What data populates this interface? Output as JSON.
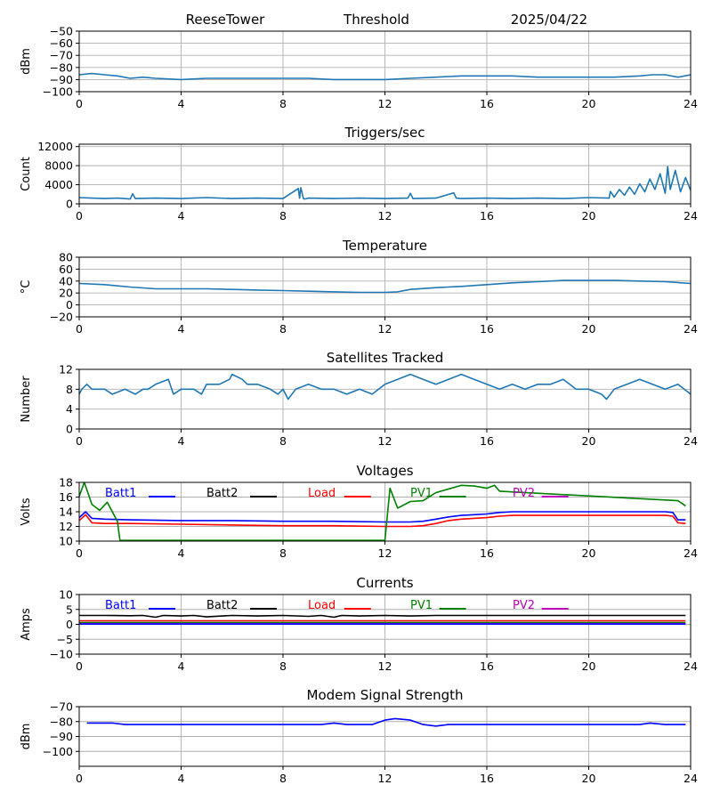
{
  "header": {
    "station": "ReeseTower",
    "mode": "Threshold",
    "date": "2025/04/22"
  },
  "chart_data": [
    {
      "type": "line",
      "title": "",
      "ylabel": "dBm",
      "xlim": [
        0,
        24
      ],
      "xticks": [
        0,
        4,
        8,
        12,
        16,
        20,
        24
      ],
      "ylim": [
        -100,
        -50
      ],
      "yticks": [
        -100,
        -90,
        -80,
        -70,
        -60,
        -50
      ],
      "grid": true,
      "series": [
        {
          "color": "#1f77b4",
          "x": [
            0,
            0.5,
            1,
            1.5,
            2,
            2.5,
            3,
            4,
            5,
            6,
            7,
            8,
            9,
            10,
            11,
            12,
            13,
            14,
            15,
            16,
            17,
            18,
            19,
            20,
            21,
            22,
            22.5,
            23,
            23.5,
            24
          ],
          "y": [
            -86,
            -85,
            -86,
            -87,
            -89,
            -88,
            -89,
            -90,
            -89,
            -89,
            -89,
            -89,
            -89,
            -90,
            -90,
            -90,
            -89,
            -88,
            -87,
            -87,
            -87,
            -88,
            -88,
            -88,
            -88,
            -87,
            -86,
            -86,
            -88,
            -86
          ]
        }
      ]
    },
    {
      "type": "line",
      "title": "Triggers/sec",
      "ylabel": "Count",
      "xlim": [
        0,
        24
      ],
      "xticks": [
        0,
        4,
        8,
        12,
        16,
        20,
        24
      ],
      "ylim": [
        0,
        12500
      ],
      "yticks": [
        0,
        4000,
        8000,
        12000
      ],
      "grid": true,
      "series": [
        {
          "color": "#1f77b4",
          "x": [
            0,
            0.5,
            1,
            1.5,
            2,
            2.1,
            2.2,
            3,
            4,
            5,
            6,
            7,
            8,
            8.6,
            8.65,
            8.7,
            8.8,
            8.85,
            9,
            10,
            11,
            12,
            12.9,
            13,
            13.1,
            14,
            14.7,
            14.8,
            15,
            16,
            17,
            18,
            19,
            20,
            20.8,
            20.85,
            21,
            21.2,
            21.4,
            21.6,
            21.8,
            22,
            22.2,
            22.4,
            22.6,
            22.8,
            23,
            23.1,
            23.2,
            23.4,
            23.6,
            23.8,
            24
          ],
          "y": [
            1300,
            1200,
            1100,
            1200,
            1000,
            2100,
            1100,
            1200,
            1100,
            1300,
            1100,
            1200,
            1100,
            3200,
            1200,
            3400,
            1100,
            1000,
            1200,
            1100,
            1200,
            1100,
            1200,
            2200,
            1100,
            1200,
            2300,
            1200,
            1100,
            1200,
            1100,
            1200,
            1100,
            1300,
            1200,
            2600,
            1400,
            3000,
            1800,
            3500,
            2000,
            4200,
            2500,
            5200,
            3000,
            6300,
            2200,
            7800,
            3000,
            7000,
            2500,
            5500,
            2800
          ]
        }
      ]
    },
    {
      "type": "line",
      "title": "Temperature",
      "ylabel": "°C",
      "xlim": [
        0,
        24
      ],
      "xticks": [
        0,
        4,
        8,
        12,
        16,
        20,
        24
      ],
      "ylim": [
        -20,
        80
      ],
      "yticks": [
        -20,
        0,
        20,
        40,
        60,
        80
      ],
      "grid": true,
      "series": [
        {
          "color": "#1f77b4",
          "x": [
            0,
            1,
            2,
            3,
            4,
            5,
            6,
            7,
            8,
            9,
            10,
            11,
            12,
            12.5,
            13,
            14,
            15,
            16,
            17,
            18,
            19,
            20,
            21,
            22,
            23,
            24
          ],
          "y": [
            36,
            34,
            30,
            27,
            27,
            27,
            26,
            25,
            24,
            23,
            22,
            21,
            21,
            22,
            26,
            29,
            31,
            34,
            37,
            39,
            41,
            41,
            41,
            40,
            39,
            36
          ]
        }
      ]
    },
    {
      "type": "line",
      "title": "Satellites Tracked",
      "ylabel": "Number",
      "xlim": [
        0,
        24
      ],
      "xticks": [
        0,
        4,
        8,
        12,
        16,
        20,
        24
      ],
      "ylim": [
        0,
        12
      ],
      "yticks": [
        0,
        4,
        8,
        12
      ],
      "grid": true,
      "series": [
        {
          "color": "#1f77b4",
          "x": [
            0,
            0.1,
            0.3,
            0.5,
            1,
            1.3,
            1.8,
            2.2,
            2.5,
            2.7,
            3,
            3.5,
            3.7,
            4,
            4.5,
            4.8,
            5,
            5.5,
            5.9,
            6,
            6.4,
            6.6,
            7,
            7.5,
            7.8,
            8,
            8.2,
            8.5,
            9,
            9.5,
            10,
            10.5,
            11,
            11.5,
            12,
            12.5,
            13,
            13.5,
            14,
            14.5,
            15,
            15.5,
            16,
            16.5,
            17,
            17.5,
            18,
            18.5,
            19,
            19.5,
            20,
            20.5,
            20.7,
            21,
            21.5,
            22,
            22.5,
            23,
            23.5,
            24
          ],
          "y": [
            7,
            8,
            9,
            8,
            8,
            7,
            8,
            7,
            8,
            8,
            9,
            10,
            7,
            8,
            8,
            7,
            9,
            9,
            10,
            11,
            10,
            9,
            9,
            8,
            7,
            8,
            6,
            8,
            9,
            8,
            8,
            7,
            8,
            7,
            9,
            10,
            11,
            10,
            9,
            10,
            11,
            10,
            9,
            8,
            9,
            8,
            9,
            9,
            10,
            8,
            8,
            7,
            6,
            8,
            9,
            10,
            9,
            8,
            9,
            7
          ]
        }
      ]
    },
    {
      "type": "line",
      "title": "Voltages",
      "ylabel": "Volts",
      "xlim": [
        0,
        24
      ],
      "xticks": [
        0,
        4,
        8,
        12,
        16,
        20,
        24
      ],
      "ylim": [
        10,
        18
      ],
      "yticks": [
        10,
        12,
        14,
        16,
        18
      ],
      "grid": true,
      "legend": [
        "Batt1",
        "Batt2",
        "Load",
        "PV1",
        "PV2"
      ],
      "series": [
        {
          "name": "Batt1",
          "color": "#0000ff",
          "x": [
            0,
            0.25,
            0.5,
            1,
            2,
            4,
            6,
            8,
            10,
            12,
            13,
            13.5,
            14,
            14.5,
            15,
            15.5,
            16,
            16.5,
            17,
            18,
            20,
            22,
            23,
            23.3,
            23.5,
            23.8
          ],
          "y": [
            13.2,
            14,
            13.1,
            13,
            12.9,
            12.8,
            12.8,
            12.7,
            12.7,
            12.6,
            12.6,
            12.7,
            13,
            13.3,
            13.5,
            13.6,
            13.7,
            13.9,
            14,
            14,
            14,
            14,
            14,
            13.9,
            12.9,
            12.9
          ]
        },
        {
          "name": "Load",
          "color": "#ff0000",
          "x": [
            0,
            0.25,
            0.5,
            1,
            2,
            4,
            6,
            8,
            10,
            12,
            13,
            13.5,
            14,
            14.5,
            15,
            15.5,
            16,
            16.5,
            17,
            18,
            20,
            22,
            23,
            23.3,
            23.5,
            23.8
          ],
          "y": [
            12.8,
            13.6,
            12.5,
            12.4,
            12.4,
            12.3,
            12.2,
            12.1,
            12.1,
            12,
            12,
            12.1,
            12.4,
            12.8,
            13,
            13.1,
            13.2,
            13.4,
            13.5,
            13.5,
            13.5,
            13.5,
            13.5,
            13.4,
            12.5,
            12.4
          ]
        },
        {
          "name": "PV1",
          "color": "#008000",
          "x": [
            0,
            0.2,
            0.5,
            0.8,
            1.1,
            1.5,
            1.6,
            12,
            12.2,
            12.5,
            13,
            13.5,
            14,
            15,
            15.5,
            16,
            16.3,
            16.5,
            23.5,
            23.8
          ],
          "y": [
            16.1,
            18,
            15,
            14.2,
            15.3,
            12.7,
            10.1,
            10.1,
            17.2,
            14.5,
            15.4,
            15.5,
            16.6,
            17.6,
            17.5,
            17.2,
            17.6,
            16.8,
            15.5,
            14.8
          ]
        }
      ]
    },
    {
      "type": "line",
      "title": "Currents",
      "ylabel": "Amps",
      "xlim": [
        0,
        24
      ],
      "xticks": [
        0,
        4,
        8,
        12,
        16,
        20,
        24
      ],
      "ylim": [
        -10,
        10
      ],
      "yticks": [
        -10,
        -5,
        0,
        5,
        10
      ],
      "grid": true,
      "legend": [
        "Batt1",
        "Batt2",
        "Load",
        "PV1",
        "PV2"
      ],
      "series": [
        {
          "name": "Batt2",
          "color": "#000000",
          "x": [
            0,
            1,
            2,
            2.5,
            3,
            3.3,
            4,
            4.5,
            5,
            6,
            7,
            8,
            9,
            9.5,
            10,
            10.3,
            11,
            12,
            13,
            14,
            16,
            20,
            23.8
          ],
          "y": [
            3,
            3,
            2.9,
            3,
            2.4,
            3,
            2.8,
            3,
            2.5,
            3,
            2.8,
            3,
            2.7,
            3,
            2.4,
            3,
            2.8,
            3,
            2.8,
            3,
            3,
            3,
            3
          ]
        },
        {
          "name": "Load",
          "color": "#ff0000",
          "x": [
            0,
            23.8
          ],
          "y": [
            1.2,
            1.2
          ]
        },
        {
          "name": "PV1",
          "color": "#008000",
          "x": [
            0,
            23.8
          ],
          "y": [
            0.6,
            0.6
          ]
        },
        {
          "name": "PV2",
          "color": "#bf00bf",
          "x": [
            0,
            23.8
          ],
          "y": [
            0.2,
            0.2
          ]
        },
        {
          "name": "Batt1",
          "color": "#0000ff",
          "x": [
            0,
            23.8
          ],
          "y": [
            0.1,
            0.1
          ]
        }
      ]
    },
    {
      "type": "line",
      "title": "Modem Signal Strength",
      "ylabel": "dBm",
      "xlim": [
        0,
        24
      ],
      "xticks": [
        0,
        4,
        8,
        12,
        16,
        20,
        24
      ],
      "ylim": [
        -110,
        -70
      ],
      "yticks": [
        -100,
        -90,
        -80,
        -70
      ],
      "grid": true,
      "series": [
        {
          "color": "#0000ff",
          "x": [
            0.3,
            1.3,
            1.8,
            4,
            8,
            9,
            9.5,
            10,
            10.5,
            11,
            11.5,
            12,
            12.4,
            13,
            13.5,
            14,
            14.5,
            16,
            20,
            22,
            22.4,
            23,
            23.8
          ],
          "y": [
            -81,
            -81,
            -82,
            -82,
            -82,
            -82,
            -82,
            -81,
            -82,
            -82,
            -82,
            -79,
            -78,
            -79,
            -82,
            -83,
            -82,
            -82,
            -82,
            -82,
            -81,
            -82,
            -82
          ]
        }
      ]
    }
  ]
}
